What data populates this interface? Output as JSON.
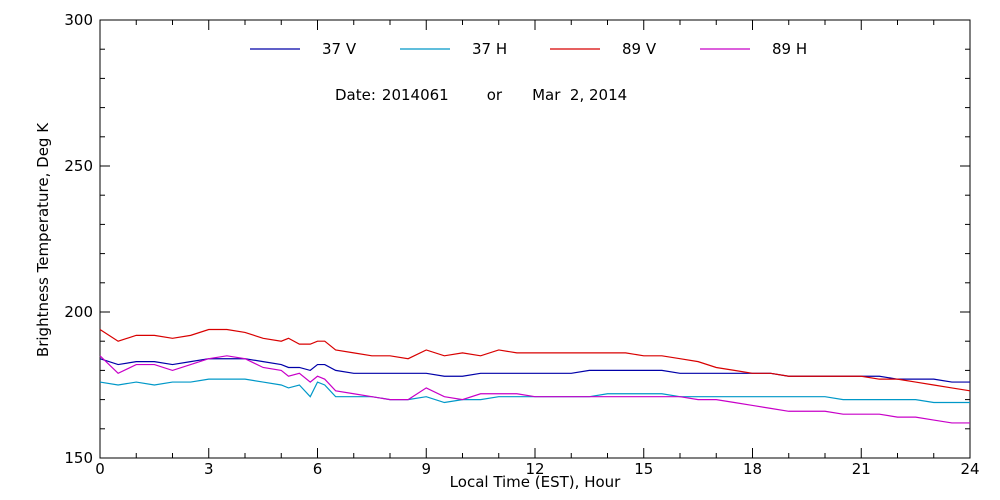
{
  "chart_data": {
    "type": "line",
    "title": "",
    "date_label": {
      "date_prefix": "Date:",
      "date_code": "2014061",
      "connector": "or",
      "date_text": "Mar  2, 2014"
    },
    "xlabel": "Local Time (EST), Hour",
    "ylabel": "Brightness Temperature, Deg K",
    "xlim": [
      0,
      24
    ],
    "ylim": [
      150,
      300
    ],
    "xticks": [
      0,
      3,
      6,
      9,
      12,
      15,
      18,
      21,
      24
    ],
    "yticks": [
      150,
      200,
      250,
      300
    ],
    "grid": false,
    "legend_position": "top",
    "series": [
      {
        "name": "37 V",
        "color": "#0000a8",
        "x": [
          0,
          0.5,
          1,
          1.5,
          2,
          2.5,
          3,
          3.5,
          4,
          4.5,
          5,
          5.2,
          5.5,
          5.8,
          6,
          6.2,
          6.5,
          7,
          7.5,
          8,
          8.5,
          9,
          9.5,
          10,
          10.5,
          11,
          11.5,
          12,
          12.5,
          13,
          13.5,
          14,
          14.5,
          15,
          15.5,
          16,
          16.5,
          17,
          17.5,
          18,
          18.5,
          19,
          19.5,
          20,
          20.5,
          21,
          21.5,
          22,
          22.5,
          23,
          23.5,
          24
        ],
        "y": [
          184,
          182,
          183,
          183,
          182,
          183,
          184,
          184,
          184,
          183,
          182,
          181,
          181,
          180,
          182,
          182,
          180,
          179,
          179,
          179,
          179,
          179,
          178,
          178,
          179,
          179,
          179,
          179,
          179,
          179,
          180,
          180,
          180,
          180,
          180,
          179,
          179,
          179,
          179,
          179,
          179,
          178,
          178,
          178,
          178,
          178,
          178,
          177,
          177,
          177,
          176,
          176
        ]
      },
      {
        "name": "37 H",
        "color": "#0098c8",
        "x": [
          0,
          0.5,
          1,
          1.5,
          2,
          2.5,
          3,
          3.5,
          4,
          4.5,
          5,
          5.2,
          5.5,
          5.8,
          6,
          6.2,
          6.5,
          7,
          7.5,
          8,
          8.5,
          9,
          9.5,
          10,
          10.5,
          11,
          11.5,
          12,
          12.5,
          13,
          13.5,
          14,
          14.5,
          15,
          15.5,
          16,
          16.5,
          17,
          17.5,
          18,
          18.5,
          19,
          19.5,
          20,
          20.5,
          21,
          21.5,
          22,
          22.5,
          23,
          23.5,
          24
        ],
        "y": [
          176,
          175,
          176,
          175,
          176,
          176,
          177,
          177,
          177,
          176,
          175,
          174,
          175,
          171,
          176,
          175,
          171,
          171,
          171,
          170,
          170,
          171,
          169,
          170,
          170,
          171,
          171,
          171,
          171,
          171,
          171,
          172,
          172,
          172,
          172,
          171,
          171,
          171,
          171,
          171,
          171,
          171,
          171,
          171,
          170,
          170,
          170,
          170,
          170,
          169,
          169,
          169
        ]
      },
      {
        "name": "89 V",
        "color": "#d80000",
        "x": [
          0,
          0.5,
          1,
          1.5,
          2,
          2.5,
          3,
          3.5,
          4,
          4.5,
          5,
          5.2,
          5.5,
          5.8,
          6,
          6.2,
          6.5,
          7,
          7.5,
          8,
          8.5,
          9,
          9.5,
          10,
          10.5,
          11,
          11.5,
          12,
          12.5,
          13,
          13.5,
          14,
          14.5,
          15,
          15.5,
          16,
          16.5,
          17,
          17.5,
          18,
          18.5,
          19,
          19.5,
          20,
          20.5,
          21,
          21.5,
          22,
          22.5,
          23,
          23.5,
          24
        ],
        "y": [
          194,
          190,
          192,
          192,
          191,
          192,
          194,
          194,
          193,
          191,
          190,
          191,
          189,
          189,
          190,
          190,
          187,
          186,
          185,
          185,
          184,
          187,
          185,
          186,
          185,
          187,
          186,
          186,
          186,
          186,
          186,
          186,
          186,
          185,
          185,
          184,
          183,
          181,
          180,
          179,
          179,
          178,
          178,
          178,
          178,
          178,
          177,
          177,
          176,
          175,
          174,
          173
        ]
      },
      {
        "name": "89 H",
        "color": "#c800c8",
        "x": [
          0,
          0.5,
          1,
          1.5,
          2,
          2.5,
          3,
          3.5,
          4,
          4.5,
          5,
          5.2,
          5.5,
          5.8,
          6,
          6.2,
          6.5,
          7,
          7.5,
          8,
          8.5,
          9,
          9.5,
          10,
          10.5,
          11,
          11.5,
          12,
          12.5,
          13,
          13.5,
          14,
          14.5,
          15,
          15.5,
          16,
          16.5,
          17,
          17.5,
          18,
          18.5,
          19,
          19.5,
          20,
          20.5,
          21,
          21.5,
          22,
          22.5,
          23,
          23.5,
          24
        ],
        "y": [
          185,
          179,
          182,
          182,
          180,
          182,
          184,
          185,
          184,
          181,
          180,
          178,
          179,
          176,
          178,
          177,
          173,
          172,
          171,
          170,
          170,
          174,
          171,
          170,
          172,
          172,
          172,
          171,
          171,
          171,
          171,
          171,
          171,
          171,
          171,
          171,
          170,
          170,
          169,
          168,
          167,
          166,
          166,
          166,
          165,
          165,
          165,
          164,
          164,
          163,
          162,
          162
        ]
      }
    ]
  }
}
